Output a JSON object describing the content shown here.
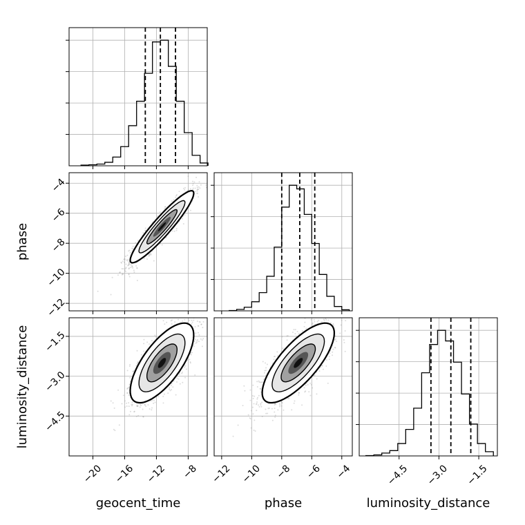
{
  "chart_data": {
    "type": "corner",
    "parameters": [
      "geocent_time",
      "phase",
      "luminosity_distance"
    ],
    "axis_labels": {
      "x": [
        "geocent_time",
        "phase",
        "luminosity_distance"
      ],
      "y": [
        "",
        "phase",
        "luminosity_distance"
      ]
    },
    "ranges": {
      "geocent_time": [
        -23,
        -5.6
      ],
      "phase": [
        -12.5,
        -3.3
      ],
      "luminosity_distance": [
        -6.0,
        -0.8
      ]
    },
    "ticks": {
      "geocent_time": {
        "values": [
          -20,
          -16,
          -12,
          -8
        ],
        "labels": [
          "−20",
          "−16",
          "−12",
          "−8"
        ]
      },
      "phase": {
        "values": [
          -12,
          -10,
          -8,
          -6,
          -4
        ],
        "labels": [
          "−12",
          "−10",
          "−8",
          "−6",
          "−4"
        ]
      },
      "luminosity_distance": {
        "values": [
          -4.5,
          -3.0,
          -1.5
        ],
        "labels": [
          "−4.5",
          "−3.0",
          "−1.5"
        ]
      }
    },
    "grid": true,
    "histograms": [
      {
        "parameter": "geocent_time",
        "bin_edges": [
          -21.5,
          -20.5,
          -19.5,
          -18.5,
          -17.5,
          -16.5,
          -15.5,
          -14.5,
          -13.5,
          -12.5,
          -11.5,
          -10.5,
          -9.5,
          -8.5,
          -7.5,
          -6.5,
          -5.5
        ],
        "counts": [
          2,
          3,
          5,
          10,
          25,
          55,
          115,
          185,
          265,
          355,
          360,
          285,
          185,
          95,
          30,
          8
        ],
        "quantiles": [
          -13.4,
          -11.5,
          -9.6
        ]
      },
      {
        "parameter": "phase",
        "bin_edges": [
          -11.5,
          -11.0,
          -10.5,
          -10.0,
          -9.5,
          -9.0,
          -8.5,
          -8.0,
          -7.5,
          -7.0,
          -6.5,
          -6.0,
          -5.5,
          -5.0,
          -4.5,
          -4.0,
          -3.5
        ],
        "counts": [
          1,
          4,
          10,
          25,
          50,
          95,
          175,
          285,
          345,
          335,
          265,
          185,
          100,
          40,
          12,
          3
        ],
        "quantiles": [
          -8.0,
          -6.8,
          -5.8
        ]
      },
      {
        "parameter": "luminosity_distance",
        "bin_edges": [
          -5.75,
          -5.45,
          -5.15,
          -4.85,
          -4.55,
          -4.25,
          -3.95,
          -3.65,
          -3.35,
          -3.05,
          -2.75,
          -2.45,
          -2.15,
          -1.85,
          -1.55,
          -1.25,
          -0.95
        ],
        "counts": [
          1,
          3,
          8,
          15,
          35,
          75,
          135,
          235,
          315,
          355,
          325,
          265,
          175,
          90,
          35,
          12
        ],
        "quantiles": [
          -3.3,
          -2.55,
          -1.8
        ]
      }
    ],
    "contour_panels": [
      {
        "x": "geocent_time",
        "y": "phase",
        "mean": [
          -11.3,
          -6.9
        ],
        "std": [
          2.0,
          1.2
        ],
        "corr": 0.93
      },
      {
        "x": "geocent_time",
        "y": "luminosity_distance",
        "mean": [
          -11.3,
          -2.5
        ],
        "std": [
          2.0,
          0.75
        ],
        "corr": 0.7
      },
      {
        "x": "phase",
        "y": "luminosity_distance",
        "mean": [
          -6.9,
          -2.5
        ],
        "std": [
          1.2,
          0.75
        ],
        "corr": 0.75
      }
    ],
    "style": {
      "line_color": "#000000",
      "scatter_color": "#9a9a9a",
      "grid_color": "#b0b0b0"
    }
  }
}
